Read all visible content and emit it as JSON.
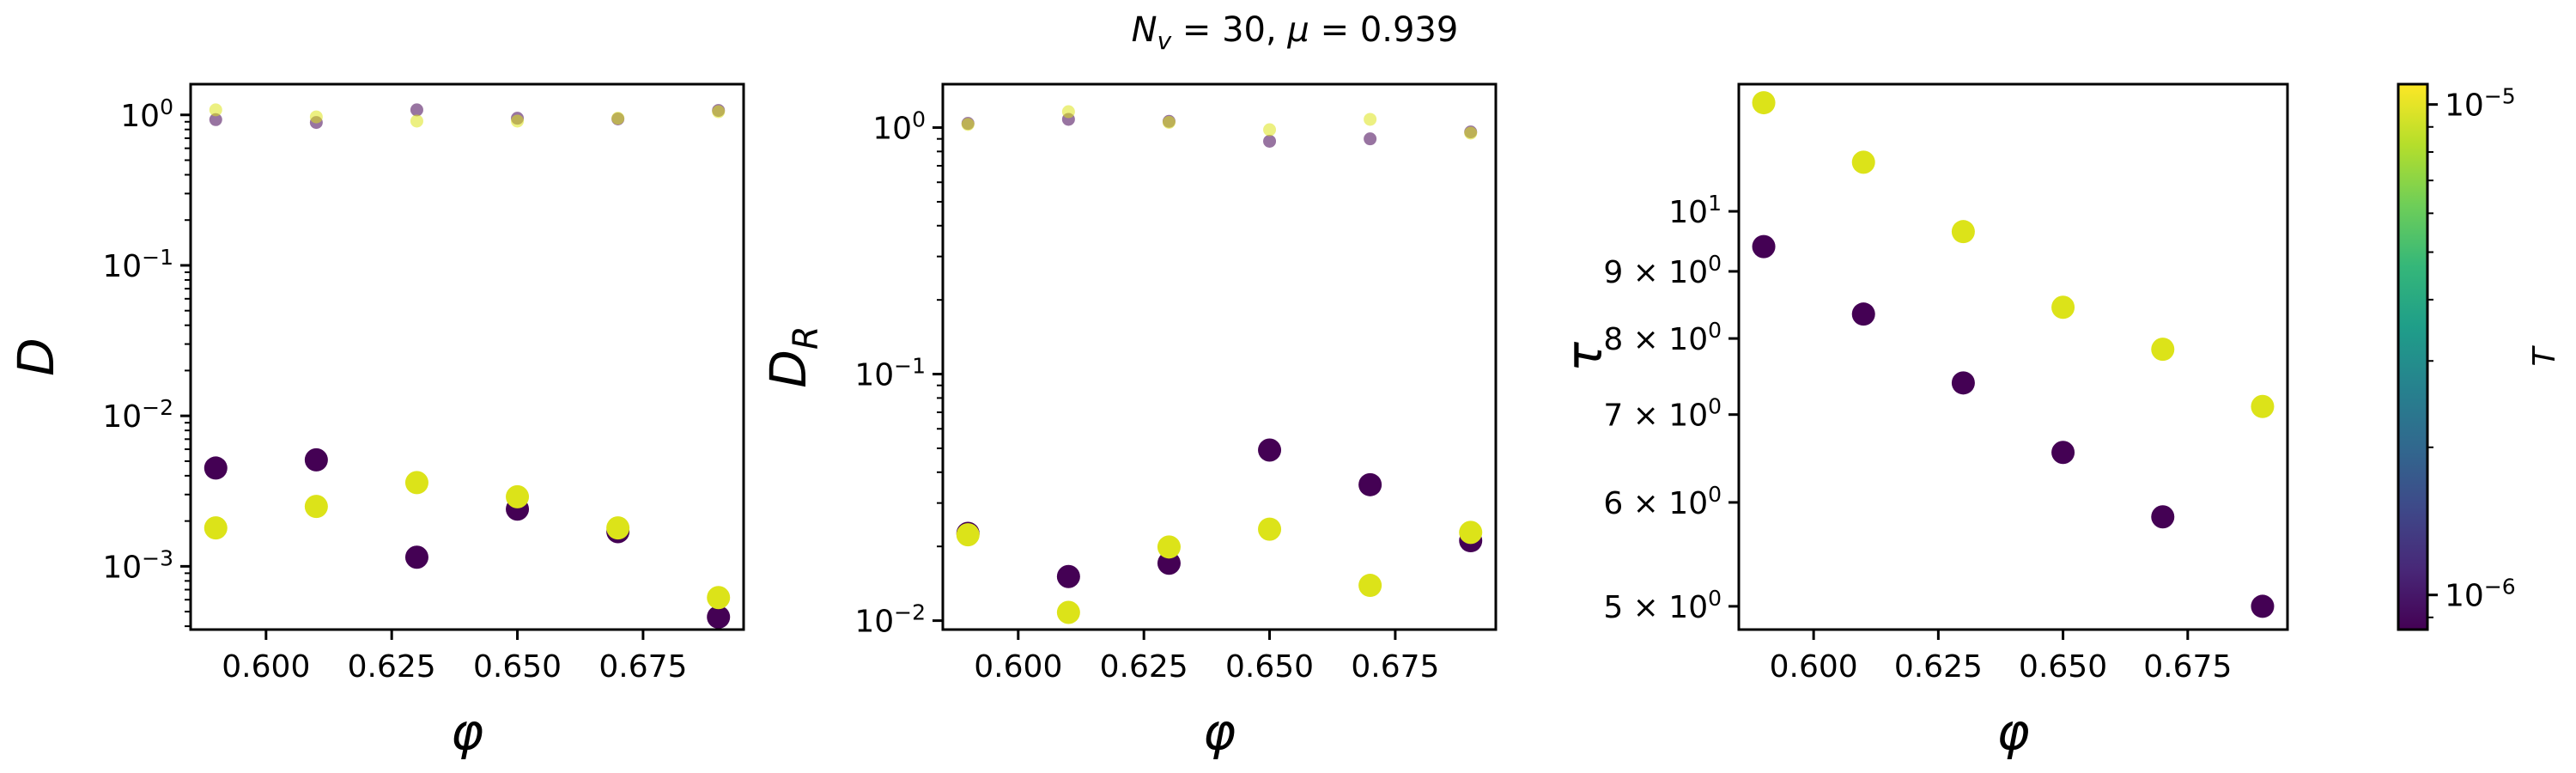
{
  "figure_title": "N_v = 30, μ = 0.939",
  "colorbar": {
    "label": "T",
    "scale": "log",
    "range": [
      8.5e-07,
      1.1e-05
    ],
    "ticks": [
      {
        "value": 1e-05,
        "base": "10",
        "exp": "−5"
      },
      {
        "value": 1e-06,
        "base": "10",
        "exp": "−6"
      }
    ],
    "colormap": [
      "#440154",
      "#482878",
      "#3e4989",
      "#31688e",
      "#26828e",
      "#1f9e89",
      "#35b779",
      "#6ece58",
      "#b5de2b",
      "#fde725"
    ],
    "low_color": "#440154",
    "high_color": "#dce319"
  },
  "chart_data": [
    {
      "type": "scatter",
      "ylabel": "D",
      "xlabel": "φ",
      "yscale": "log",
      "xlim": [
        0.585,
        0.695
      ],
      "ylim": [
        0.00038,
        1.6
      ],
      "x_ticks": [
        "0.600",
        "0.625",
        "0.650",
        "0.675"
      ],
      "y_ticks": [
        {
          "value": 1,
          "base": "10",
          "exp": "0"
        },
        {
          "value": 0.1,
          "base": "10",
          "exp": "−1"
        },
        {
          "value": 0.01,
          "base": "10",
          "exp": "−2"
        },
        {
          "value": 0.001,
          "base": "10",
          "exp": "−3"
        }
      ],
      "series": [
        {
          "temperature": "low",
          "kind": "short_time",
          "x": [
            0.59,
            0.61,
            0.63,
            0.65,
            0.67,
            0.69
          ],
          "y": [
            0.93,
            0.89,
            1.08,
            0.95,
            0.94,
            1.07
          ]
        },
        {
          "temperature": "high",
          "kind": "short_time",
          "x": [
            0.59,
            0.61,
            0.63,
            0.65,
            0.67,
            0.69
          ],
          "y": [
            1.08,
            0.97,
            0.91,
            0.91,
            0.95,
            1.05
          ]
        },
        {
          "temperature": "low",
          "kind": "long_time",
          "x": [
            0.59,
            0.61,
            0.63,
            0.65,
            0.67,
            0.69
          ],
          "y": [
            0.0045,
            0.0051,
            0.00115,
            0.0024,
            0.0017,
            0.00046
          ]
        },
        {
          "temperature": "high",
          "kind": "long_time",
          "x": [
            0.59,
            0.61,
            0.63,
            0.65,
            0.67,
            0.69
          ],
          "y": [
            0.0018,
            0.0025,
            0.0036,
            0.0029,
            0.0018,
            0.00062
          ]
        }
      ]
    },
    {
      "type": "scatter",
      "ylabel": "D_R",
      "xlabel": "φ",
      "yscale": "log",
      "xlim": [
        0.585,
        0.695
      ],
      "ylim": [
        0.0092,
        1.5
      ],
      "x_ticks": [
        "0.600",
        "0.625",
        "0.650",
        "0.675"
      ],
      "y_ticks": [
        {
          "value": 1,
          "base": "10",
          "exp": "0"
        },
        {
          "value": 0.1,
          "base": "10",
          "exp": "−1"
        },
        {
          "value": 0.01,
          "base": "10",
          "exp": "−2"
        }
      ],
      "series": [
        {
          "temperature": "low",
          "kind": "short_time",
          "x": [
            0.59,
            0.61,
            0.63,
            0.65,
            0.67,
            0.69
          ],
          "y": [
            1.04,
            1.08,
            1.06,
            0.88,
            0.9,
            0.96
          ]
        },
        {
          "temperature": "high",
          "kind": "short_time",
          "x": [
            0.59,
            0.61,
            0.63,
            0.65,
            0.67,
            0.69
          ],
          "y": [
            1.03,
            1.16,
            1.05,
            0.98,
            1.08,
            0.95
          ]
        },
        {
          "temperature": "low",
          "kind": "long_time",
          "x": [
            0.59,
            0.61,
            0.63,
            0.65,
            0.67,
            0.69
          ],
          "y": [
            0.0226,
            0.0151,
            0.0171,
            0.0492,
            0.0356,
            0.0211
          ]
        },
        {
          "temperature": "high",
          "kind": "long_time",
          "x": [
            0.59,
            0.61,
            0.63,
            0.65,
            0.67,
            0.69
          ],
          "y": [
            0.0223,
            0.0108,
            0.0199,
            0.0235,
            0.0139,
            0.0228
          ]
        }
      ]
    },
    {
      "type": "scatter",
      "ylabel": "τ",
      "xlabel": "φ",
      "yscale": "log",
      "xlim": [
        0.585,
        0.695
      ],
      "ylim": [
        4.8,
        12.5
      ],
      "x_ticks": [
        "0.600",
        "0.625",
        "0.650",
        "0.675"
      ],
      "y_ticks": [
        {
          "value": 10,
          "base": "10",
          "exp": "1"
        },
        {
          "value": 9,
          "base": "9 × 10",
          "exp": "0"
        },
        {
          "value": 8,
          "base": "8 × 10",
          "exp": "0"
        },
        {
          "value": 7,
          "base": "7 × 10",
          "exp": "0"
        },
        {
          "value": 6,
          "base": "6 × 10",
          "exp": "0"
        },
        {
          "value": 5,
          "base": "5 × 10",
          "exp": "0"
        }
      ],
      "series": [
        {
          "temperature": "low",
          "kind": "long_time",
          "x": [
            0.59,
            0.61,
            0.63,
            0.65,
            0.67,
            0.69
          ],
          "y": [
            9.4,
            8.35,
            7.4,
            6.55,
            5.85,
            5.0
          ]
        },
        {
          "temperature": "high",
          "kind": "long_time",
          "x": [
            0.59,
            0.61,
            0.63,
            0.65,
            0.67,
            0.69
          ],
          "y": [
            12.1,
            10.9,
            9.65,
            8.45,
            7.85,
            7.1
          ]
        }
      ]
    }
  ]
}
